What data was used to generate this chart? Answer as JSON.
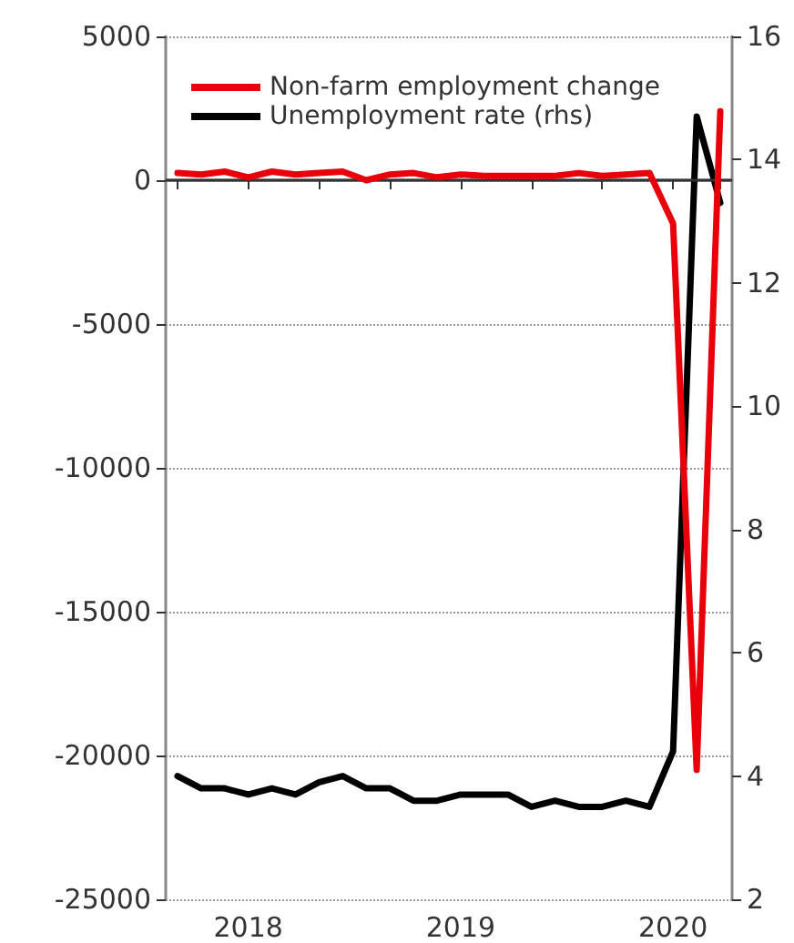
{
  "chart_data": {
    "type": "line",
    "categories": [
      null,
      null,
      null,
      "2018",
      null,
      null,
      null,
      null,
      null,
      null,
      null,
      null,
      "2019",
      null,
      null,
      null,
      null,
      null,
      null,
      null,
      null,
      "2020",
      null,
      null
    ],
    "series": [
      {
        "name": "Non-farm employment change",
        "color": "#e8000b",
        "values": [
          250,
          200,
          300,
          100,
          300,
          200,
          250,
          300,
          0,
          200,
          250,
          100,
          200,
          150,
          150,
          150,
          150,
          250,
          150,
          200,
          250,
          -1500,
          -20500,
          2400
        ]
      },
      {
        "name": "Unemployment rate (rhs)",
        "color": "#000000",
        "axis": "y2",
        "values": [
          4.0,
          3.8,
          3.8,
          3.7,
          3.8,
          3.7,
          3.9,
          4.0,
          3.8,
          3.8,
          3.6,
          3.6,
          3.7,
          3.7,
          3.7,
          3.5,
          3.6,
          3.5,
          3.5,
          3.6,
          3.5,
          4.4,
          14.7,
          13.3
        ]
      }
    ],
    "ylim": [
      -25000,
      5000
    ],
    "yticks": [
      -25000,
      -20000,
      -15000,
      -10000,
      -5000,
      0,
      5000
    ],
    "y2lim": [
      2,
      16
    ],
    "y2ticks": [
      2,
      4,
      6,
      8,
      10,
      12,
      14,
      16
    ],
    "ref_lines": [
      {
        "axis": "y",
        "value": 0,
        "color": "#333333",
        "line_style": "solid"
      }
    ],
    "grid": "y",
    "legend": "top left",
    "marker": "none",
    "line_style": "solid"
  }
}
